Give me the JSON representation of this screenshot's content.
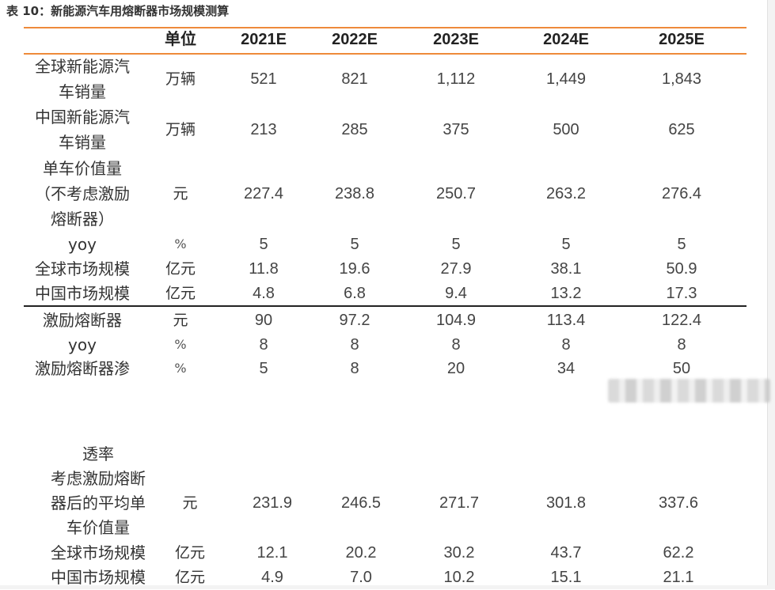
{
  "title": "表 10：新能源汽车用熔断器市场规模测算",
  "header": {
    "unit": "单位",
    "years": [
      "2021E",
      "2022E",
      "2023E",
      "2024E",
      "2025E"
    ]
  },
  "rows": [
    {
      "label": [
        "全球新能源汽",
        "车销量"
      ],
      "unit": "万辆",
      "values": [
        "521",
        "821",
        "1,112",
        "1,449",
        "1,843"
      ]
    },
    {
      "label": [
        "中国新能源汽",
        "车销量"
      ],
      "unit": "万辆",
      "values": [
        "213",
        "285",
        "375",
        "500",
        "625"
      ]
    },
    {
      "label": [
        "单车价值量",
        "（不考虑激励",
        "熔断器）"
      ],
      "unit": "元",
      "values": [
        "227.4",
        "238.8",
        "250.7",
        "263.2",
        "276.4"
      ]
    },
    {
      "label": [
        "yoy"
      ],
      "unit": "%",
      "values": [
        "5",
        "5",
        "5",
        "5",
        "5"
      ]
    },
    {
      "label": [
        "全球市场规模"
      ],
      "unit": "亿元",
      "values": [
        "11.8",
        "19.6",
        "27.9",
        "38.1",
        "50.9"
      ]
    },
    {
      "label": [
        "中国市场规模"
      ],
      "unit": "亿元",
      "values": [
        "4.8",
        "6.8",
        "9.4",
        "13.2",
        "17.3"
      ]
    },
    {
      "label": [
        "激励熔断器"
      ],
      "unit": "元",
      "values": [
        "90",
        "97.2",
        "104.9",
        "113.4",
        "122.4"
      ]
    },
    {
      "label": [
        "yoy"
      ],
      "unit": "%",
      "values": [
        "8",
        "8",
        "8",
        "8",
        "8"
      ]
    },
    {
      "label": [
        "激励熔断器渗"
      ],
      "unit": "%",
      "values": [
        "5",
        "8",
        "20",
        "34",
        "50"
      ]
    },
    {
      "label": [
        "透率"
      ],
      "unit": "",
      "values": [
        "",
        "",
        "",
        "",
        ""
      ]
    },
    {
      "label": [
        "考虑激励熔断",
        "器后的平均单",
        "车价值量"
      ],
      "unit": "元",
      "values": [
        "231.9",
        "246.5",
        "271.7",
        "301.8",
        "337.6"
      ]
    },
    {
      "label": [
        "全球市场规模"
      ],
      "unit": "亿元",
      "values": [
        "12.1",
        "20.2",
        "30.2",
        "43.7",
        "62.2"
      ]
    },
    {
      "label": [
        "中国市场规模"
      ],
      "unit": "亿元",
      "values": [
        "4.9",
        "7.0",
        "10.2",
        "15.1",
        "21.1"
      ]
    }
  ]
}
